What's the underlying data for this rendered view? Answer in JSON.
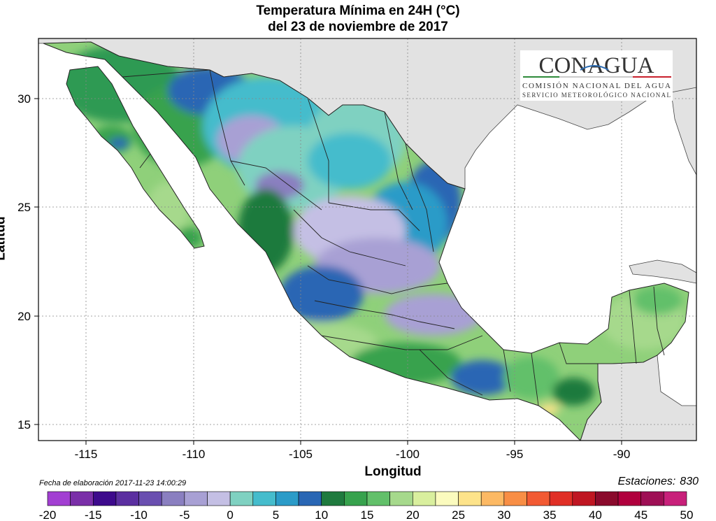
{
  "title_line1": "Temperatura Mínima en 24H (°C)",
  "title_line2": "del  23 de noviembre de 2017",
  "axes": {
    "xlabel": "Longitud",
    "ylabel": "Latitud",
    "xticks": [
      "-115",
      "-110",
      "-105",
      "-100",
      "-95",
      "-90"
    ],
    "yticks": [
      "30",
      "25",
      "20",
      "15"
    ]
  },
  "logo": {
    "name": "CONAGUA",
    "line1": "COMISIÓN NACIONAL DEL AGUA",
    "line2": "SERVICIO METEOROLÓGICO NACIONAL"
  },
  "footer": {
    "fecha": "Fecha de elaboración 2017-11-23 14:00:29",
    "estaciones_label": "Estaciones:",
    "estaciones_value": "830"
  },
  "legend": {
    "labels": [
      "-20",
      "-15",
      "-10",
      "-5",
      "0",
      "5",
      "10",
      "15",
      "20",
      "25",
      "30",
      "35",
      "40",
      "45",
      "50"
    ],
    "colors": [
      "#a23fd2",
      "#7a2fa8",
      "#3d0a8c",
      "#5b2fa0",
      "#6a4fb0",
      "#8a7fc0",
      "#a8a0d4",
      "#c4bfe4",
      "#7fd1c1",
      "#45bccc",
      "#2b9bc8",
      "#2966b4",
      "#1f7a3e",
      "#37a24d",
      "#62c06a",
      "#a6d98c",
      "#d9ef9e",
      "#fbfbbe",
      "#fde38a",
      "#fcb964",
      "#f88e45",
      "#f25a33",
      "#e02f26",
      "#bf1622",
      "#8a0a2c",
      "#b0003d",
      "#9e0f55",
      "#c8207a"
    ]
  },
  "map_colors": {
    "ocean": "#ffffff",
    "neighbor_land": "#e2e2e2",
    "gridline": "#888888"
  }
}
